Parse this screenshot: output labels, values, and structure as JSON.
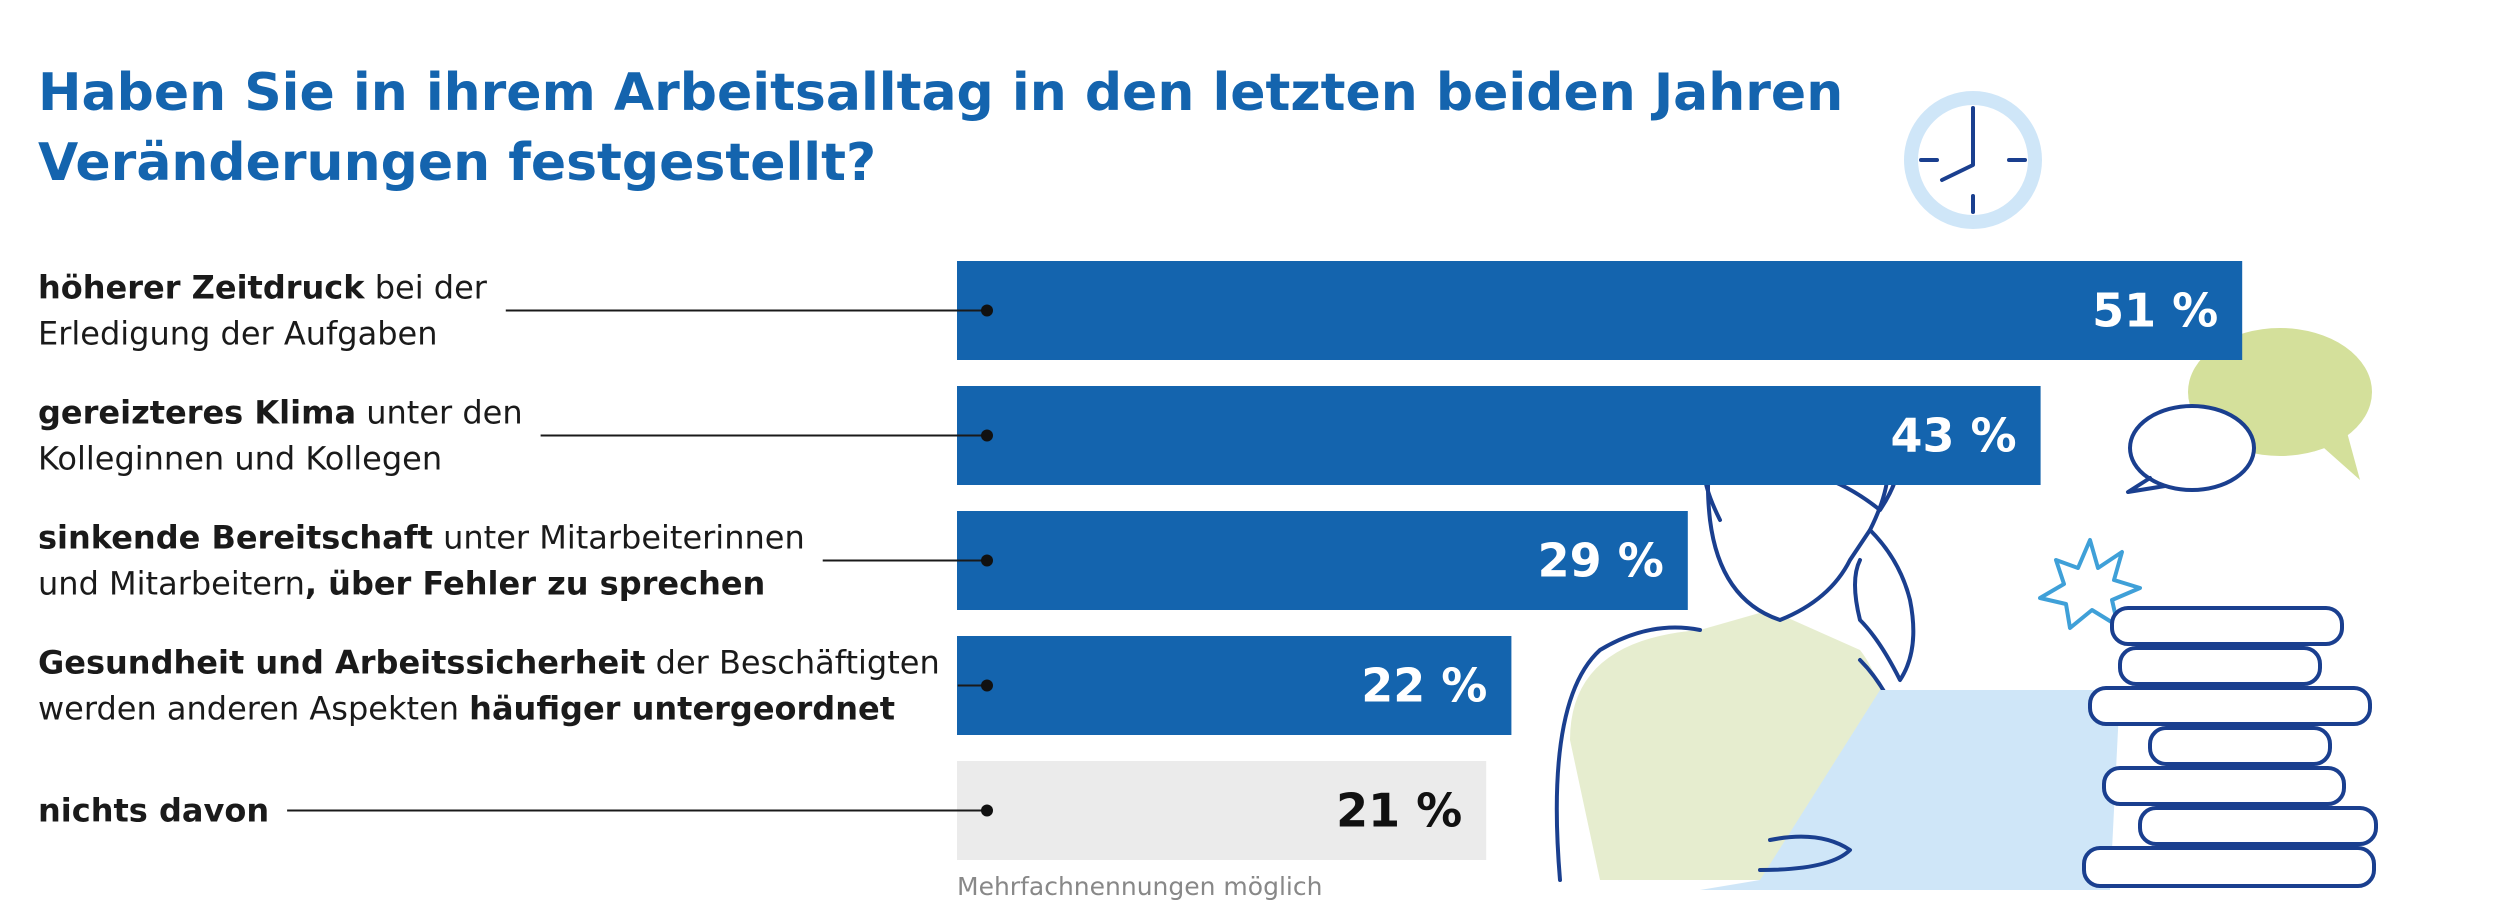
{
  "chart_data": {
    "type": "bar",
    "title": [
      "Haben Sie in ihrem Arbeitsalltag in den letzten beiden Jahren",
      "Veränderungen festgestellt?"
    ],
    "categories": [
      [
        [
          {
            "t": "höherer Zeitdruck",
            "b": true
          },
          {
            "t": " bei der"
          }
        ],
        [
          {
            "t": "Erledigung der Aufgaben"
          }
        ]
      ],
      [
        [
          {
            "t": "gereizteres Klima",
            "b": true
          },
          {
            "t": " unter den"
          }
        ],
        [
          {
            "t": "Kolleginnen und Kollegen"
          }
        ]
      ],
      [
        [
          {
            "t": "sinkende Bereitschaft",
            "b": true
          },
          {
            "t": " unter Mitarbeiterinnen"
          }
        ],
        [
          {
            "t": "und Mitarbeitern"
          },
          {
            "t": ", über Fehler zu sprechen",
            "b": true
          }
        ]
      ],
      [
        [
          {
            "t": "Gesundheit und Arbeitssicherheit",
            "b": true
          },
          {
            "t": " der Beschäftigten"
          }
        ],
        [
          {
            "t": "werden anderen Aspekten "
          },
          {
            "t": "häufiger untergeordnet",
            "b": true
          }
        ]
      ],
      [
        [
          {
            "t": "nichts davon",
            "b": true
          }
        ]
      ]
    ],
    "values": [
      51,
      43,
      29,
      22,
      21
    ],
    "value_labels": [
      "51 %",
      "43 %",
      "29 %",
      "22 %",
      "21 %"
    ],
    "colors": [
      "#1464ae",
      "#1464ae",
      "#1464ae",
      "#1464ae",
      "#ebebeb"
    ],
    "label_colors": [
      "#ffffff",
      "#ffffff",
      "#ffffff",
      "#ffffff",
      "#111111"
    ],
    "note": "Mehrfachnennungen möglich"
  }
}
